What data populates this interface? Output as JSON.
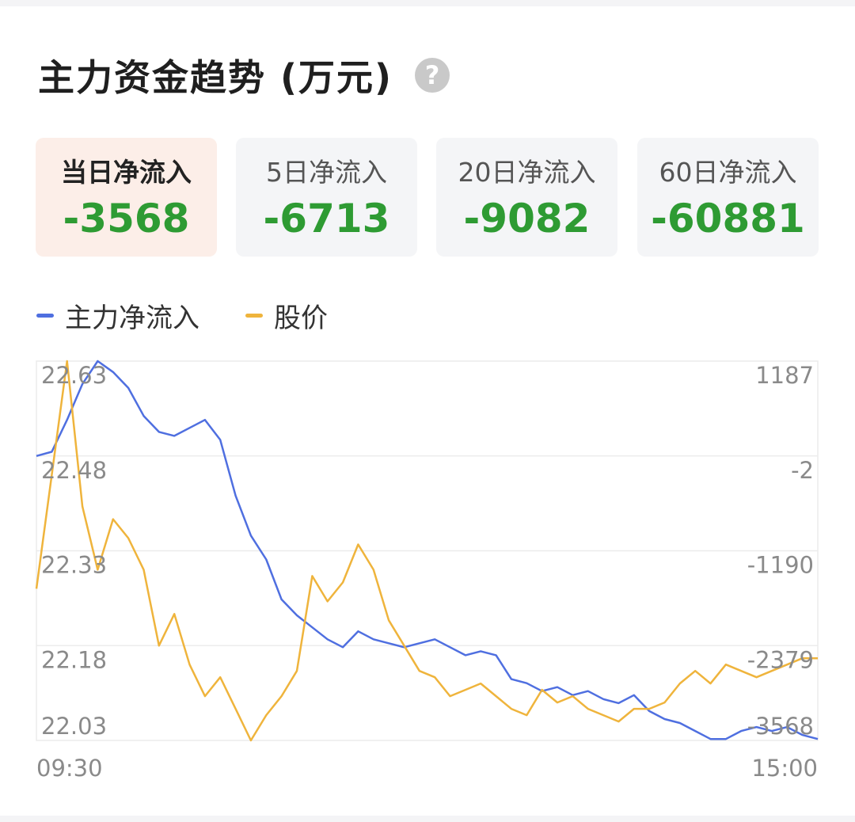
{
  "title": "主力资金趋势 (万元)",
  "help_icon": "question-circle-icon",
  "help_glyph": "?",
  "cards": [
    {
      "label": "当日净流入",
      "value": "-3568",
      "active": true
    },
    {
      "label": "5日净流入",
      "value": "-6713",
      "active": false
    },
    {
      "label": "20日净流入",
      "value": "-9082",
      "active": false
    },
    {
      "label": "60日净流入",
      "value": "-60881",
      "active": false
    }
  ],
  "colors": {
    "flow": "#4f6fe0",
    "price": "#efb43c",
    "positive": "#2e9b33",
    "active_bg": "#fceee8"
  },
  "legend": [
    {
      "label": "主力净流入",
      "color": "#4f6fe0"
    },
    {
      "label": "股价",
      "color": "#efb43c"
    }
  ],
  "chart_data": {
    "type": "line",
    "x_start": "09:30",
    "x_end": "15:00",
    "left_axis": {
      "ticks": [
        "22.63",
        "22.48",
        "22.33",
        "22.18",
        "22.03"
      ],
      "range": [
        22.03,
        22.63
      ]
    },
    "right_axis": {
      "ticks": [
        "1187",
        "-2",
        "-1190",
        "-2379",
        "-3568"
      ],
      "range": [
        -3568,
        1187
      ]
    },
    "grid": true,
    "series": [
      {
        "name": "主力净流入",
        "axis": "right",
        "color": "#4f6fe0",
        "values": [
          -2,
          50,
          450,
          900,
          1187,
          1050,
          850,
          500,
          300,
          250,
          350,
          450,
          200,
          -500,
          -1000,
          -1300,
          -1800,
          -2000,
          -2150,
          -2300,
          -2400,
          -2200,
          -2300,
          -2350,
          -2400,
          -2350,
          -2300,
          -2400,
          -2500,
          -2450,
          -2500,
          -2800,
          -2850,
          -2950,
          -2900,
          -3000,
          -2950,
          -3050,
          -3100,
          -3000,
          -3200,
          -3300,
          -3350,
          -3450,
          -3550,
          -3550,
          -3450,
          -3400,
          -3450,
          -3400,
          -3500,
          -3550
        ]
      },
      {
        "name": "股价",
        "axis": "left",
        "color": "#efb43c",
        "values": [
          22.27,
          22.45,
          22.63,
          22.4,
          22.3,
          22.38,
          22.35,
          22.3,
          22.18,
          22.23,
          22.15,
          22.1,
          22.13,
          22.08,
          22.03,
          22.07,
          22.1,
          22.14,
          22.29,
          22.25,
          22.28,
          22.34,
          22.3,
          22.22,
          22.18,
          22.14,
          22.13,
          22.1,
          22.11,
          22.12,
          22.1,
          22.08,
          22.07,
          22.11,
          22.09,
          22.1,
          22.08,
          22.07,
          22.06,
          22.08,
          22.08,
          22.09,
          22.12,
          22.14,
          22.12,
          22.15,
          22.14,
          22.13,
          22.14,
          22.15,
          22.16,
          22.16
        ]
      }
    ]
  }
}
